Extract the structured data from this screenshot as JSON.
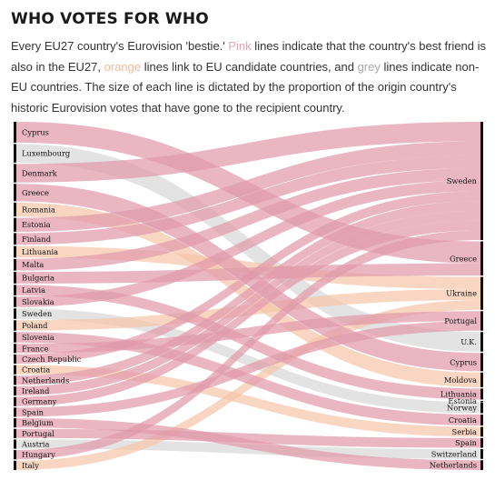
{
  "header": {
    "title": "WHO VOTES FOR WHO",
    "subtitle": {
      "p1": "Every EU27 country's Eurovision 'bestie.' ",
      "pink": "Pink",
      "p2": " lines indicate that the country's best friend is also in the EU27, ",
      "orange": "orange",
      "p3": " lines link to EU candidate countries, and ",
      "grey": "grey",
      "p4": " lines indicate non-EU countries. The size of each line is dictated by the proportion of the origin country's historic Eurovision votes that have gone to the recipient country."
    }
  },
  "colors": {
    "pink": "#e09aaa",
    "orange": "#f5c4a8",
    "grey": "#d9d9d9"
  },
  "chart_data": {
    "type": "sankey",
    "sources": [
      {
        "name": "Cyprus",
        "weight": 9
      },
      {
        "name": "Luxembourg",
        "weight": 8
      },
      {
        "name": "Denmark",
        "weight": 8
      },
      {
        "name": "Greece",
        "weight": 7.5
      },
      {
        "name": "Romania",
        "weight": 6
      },
      {
        "name": "Estonia",
        "weight": 6
      },
      {
        "name": "Finland",
        "weight": 5
      },
      {
        "name": "Lithuania",
        "weight": 5
      },
      {
        "name": "Malta",
        "weight": 5
      },
      {
        "name": "Bulgaria",
        "weight": 5
      },
      {
        "name": "Latvia",
        "weight": 4.5
      },
      {
        "name": "Slovakia",
        "weight": 4.5
      },
      {
        "name": "Sweden",
        "weight": 4.5
      },
      {
        "name": "Poland",
        "weight": 4.5
      },
      {
        "name": "Slovenia",
        "weight": 4.5
      },
      {
        "name": "France",
        "weight": 4
      },
      {
        "name": "Czech Republic",
        "weight": 4
      },
      {
        "name": "Croatia",
        "weight": 4
      },
      {
        "name": "Netherlands",
        "weight": 4
      },
      {
        "name": "Ireland",
        "weight": 4
      },
      {
        "name": "Germany",
        "weight": 4
      },
      {
        "name": "Spain",
        "weight": 4
      },
      {
        "name": "Belgium",
        "weight": 4
      },
      {
        "name": "Portugal",
        "weight": 4
      },
      {
        "name": "Austria",
        "weight": 4
      },
      {
        "name": "Hungary",
        "weight": 4
      },
      {
        "name": "Italy",
        "weight": 4
      }
    ],
    "targets": [
      "Sweden",
      "Greece",
      "Ukraine",
      "Portugal",
      "U.K.",
      "Cyprus",
      "Moldova",
      "Lithuania",
      "Estonia",
      "Norway",
      "Croatia",
      "Serbia",
      "Spain",
      "Switzerland",
      "Netherlands"
    ],
    "links": [
      {
        "source": "Cyprus",
        "target": "Greece",
        "group": "pink"
      },
      {
        "source": "Luxembourg",
        "target": "U.K.",
        "group": "grey"
      },
      {
        "source": "Denmark",
        "target": "Sweden",
        "group": "pink"
      },
      {
        "source": "Greece",
        "target": "Cyprus",
        "group": "pink"
      },
      {
        "source": "Romania",
        "target": "Moldova",
        "group": "orange"
      },
      {
        "source": "Estonia",
        "target": "Sweden",
        "group": "pink"
      },
      {
        "source": "Finland",
        "target": "Sweden",
        "group": "pink"
      },
      {
        "source": "Lithuania",
        "target": "Ukraine",
        "group": "orange"
      },
      {
        "source": "Malta",
        "target": "Sweden",
        "group": "pink"
      },
      {
        "source": "Bulgaria",
        "target": "Greece",
        "group": "pink"
      },
      {
        "source": "Latvia",
        "target": "Lithuania",
        "group": "pink"
      },
      {
        "source": "Slovakia",
        "target": "Sweden",
        "group": "pink"
      },
      {
        "source": "Sweden",
        "target": "Norway",
        "group": "grey"
      },
      {
        "source": "Poland",
        "target": "Ukraine",
        "group": "orange"
      },
      {
        "source": "Slovenia",
        "target": "Croatia",
        "group": "pink"
      },
      {
        "source": "France",
        "target": "Portugal",
        "group": "pink"
      },
      {
        "source": "Czech Republic",
        "target": "Sweden",
        "group": "pink"
      },
      {
        "source": "Croatia",
        "target": "Serbia",
        "group": "orange"
      },
      {
        "source": "Netherlands",
        "target": "Sweden",
        "group": "pink"
      },
      {
        "source": "Ireland",
        "target": "Sweden",
        "group": "pink"
      },
      {
        "source": "Germany",
        "target": "Sweden",
        "group": "pink"
      },
      {
        "source": "Spain",
        "target": "Portugal",
        "group": "pink"
      },
      {
        "source": "Belgium",
        "target": "Netherlands",
        "group": "pink"
      },
      {
        "source": "Portugal",
        "target": "Spain",
        "group": "pink"
      },
      {
        "source": "Austria",
        "target": "Switzerland",
        "group": "grey"
      },
      {
        "source": "Hungary",
        "target": "Sweden",
        "group": "pink"
      },
      {
        "source": "Italy",
        "target": "Ukraine",
        "group": "orange"
      }
    ]
  }
}
